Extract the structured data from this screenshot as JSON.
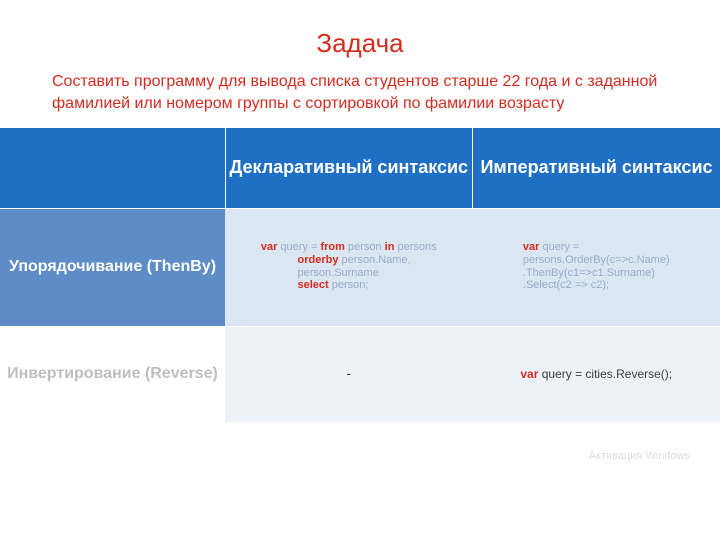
{
  "colors": {
    "accent_red": "#d52b1e",
    "hdr_blue": "#1f6fc4",
    "row_blue": "#5d8cc6",
    "cell_light1": "#dbe6f3",
    "cell_light2": "#edf2f9",
    "muted_gray": "#bfbfbf",
    "code_kw": "#d52b1e",
    "code_body": "#9aa9c9",
    "code_dark": "#3b3b3b"
  },
  "typography": {
    "title_fontsize": 26,
    "task_fontsize": 16,
    "header_fontsize": 18,
    "label_fontsize": 16,
    "code_fontsize": 11,
    "row2_code_fontsize": 12
  },
  "title": "Задача",
  "task": "Составить программу для вывода списка студентов старше 22 года и с заданной фамилией или номером группы с сортировкой по фамилии возрасту",
  "table": {
    "headers": {
      "left": "",
      "mid": "Декларативный синтаксис",
      "right": "Императивный синтаксис"
    },
    "rows": [
      {
        "label": "Упорядочивание (ThenBy)",
        "decl": {
          "kw": [
            "var",
            "from",
            "in",
            "orderby",
            "select"
          ],
          "text": "var query = from person in persons\n            orderby person.Name,\n            person.Surname\n            select person;"
        },
        "imp": {
          "kw": [
            "var"
          ],
          "text": "var query =\npersons.OrderBy(c=>c.Name)\n.ThenBy(c1=>c1.Surname)\n.Select(c2 => c2);"
        }
      },
      {
        "label": "Инвертирование (Reverse)",
        "decl_text": "-",
        "imp_html": {
          "kw": "var",
          "body": " query = cities.Reverse();"
        }
      }
    ]
  },
  "watermark": "Активация Windows"
}
